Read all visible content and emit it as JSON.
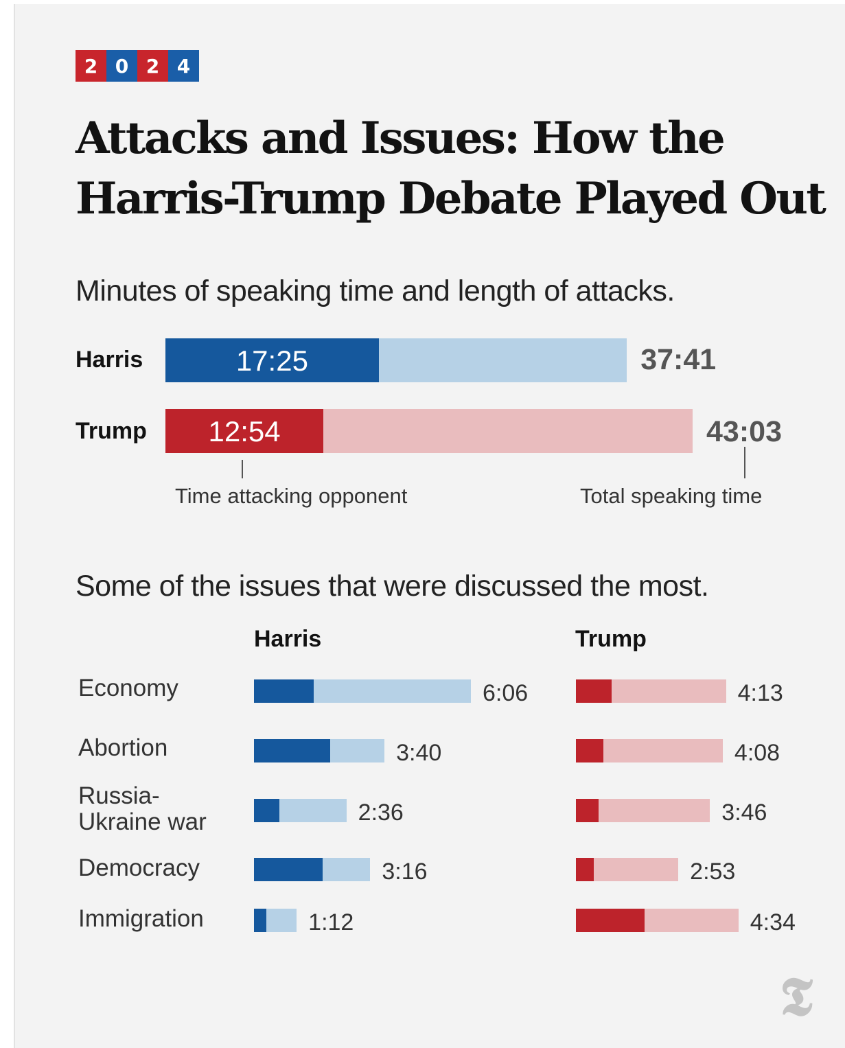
{
  "badge": {
    "digits": [
      "2",
      "0",
      "2",
      "4"
    ],
    "colors": [
      "#c8252c",
      "#1a5ea8",
      "#c8252c",
      "#1a5ea8"
    ]
  },
  "title": "Attacks and Issues: How the Harris-Trump Debate Played Out",
  "colors": {
    "harris_dark": "#15589d",
    "harris_light": "#b6d1e6",
    "trump_dark": "#bd232b",
    "trump_light": "#e9bcbe"
  },
  "chart_data": [
    {
      "type": "bar",
      "title": "Minutes of speaking time and length of attacks.",
      "categories": [
        "Harris",
        "Trump"
      ],
      "series": [
        {
          "name": "Time attacking opponent",
          "values": [
            "17:25",
            "12:54"
          ],
          "minutes": [
            17.42,
            12.9
          ]
        },
        {
          "name": "Total speaking time",
          "values": [
            "37:41",
            "43:03"
          ],
          "minutes": [
            37.68,
            43.05
          ]
        }
      ]
    },
    {
      "type": "bar",
      "title": "Some of the issues that were discussed the most.",
      "categories": [
        "Economy",
        "Abortion",
        "Russia-\nUkraine war",
        "Democracy",
        "Immigration"
      ],
      "panels": [
        {
          "name": "Harris",
          "totals": [
            "6:06",
            "3:40",
            "2:36",
            "3:16",
            "1:12"
          ],
          "total_minutes": [
            6.1,
            3.67,
            2.6,
            3.27,
            1.2
          ],
          "attack_minutes": [
            1.68,
            2.14,
            0.72,
            1.93,
            0.35
          ]
        },
        {
          "name": "Trump",
          "totals": [
            "4:13",
            "4:08",
            "3:46",
            "2:53",
            "4:34"
          ],
          "total_minutes": [
            4.22,
            4.13,
            3.77,
            2.88,
            4.57
          ],
          "attack_minutes": [
            1.0,
            0.78,
            0.64,
            0.5,
            1.93
          ]
        }
      ]
    }
  ],
  "logo": "𝕿"
}
